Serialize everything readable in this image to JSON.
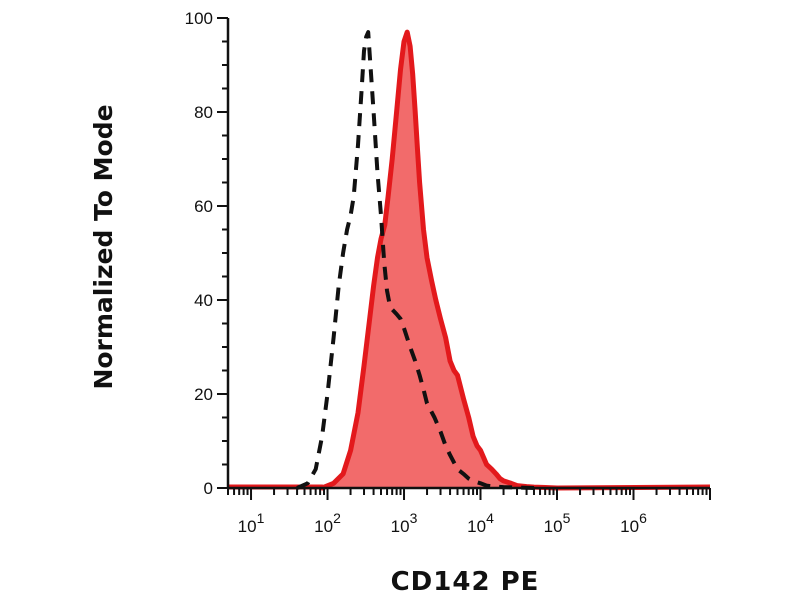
{
  "chart_data": {
    "type": "area",
    "xlabel": "CD142 PE",
    "ylabel": "Normalized To Mode",
    "x_scale": "log",
    "xlim": [
      5,
      10000000
    ],
    "ylim": [
      0,
      100
    ],
    "x_ticks": [
      {
        "base": "10",
        "exp": "1",
        "value": 10
      },
      {
        "base": "10",
        "exp": "2",
        "value": 100
      },
      {
        "base": "10",
        "exp": "3",
        "value": 1000
      },
      {
        "base": "10",
        "exp": "4",
        "value": 10000
      },
      {
        "base": "10",
        "exp": "5",
        "value": 100000
      },
      {
        "base": "10",
        "exp": "6",
        "value": 1000000
      }
    ],
    "y_ticks": [
      "0",
      "20",
      "40",
      "60",
      "80",
      "100"
    ],
    "grid": false,
    "legend": "none",
    "colors": {
      "stained_line": "#e3191c",
      "stained_fill": "#f26b6b",
      "control_line": "#111111",
      "axis": "#111111"
    },
    "series": [
      {
        "style": "filled-solid",
        "x": [
          85,
          120,
          160,
          200,
          250,
          300,
          350,
          400,
          450,
          500,
          560,
          620,
          700,
          800,
          900,
          1000,
          1100,
          1200,
          1300,
          1400,
          1500,
          1600,
          1800,
          2000,
          2300,
          2600,
          3000,
          3500,
          4000,
          4500,
          5000,
          6000,
          7000,
          8000,
          9000,
          10000,
          12000,
          14000,
          16000,
          18000,
          20000,
          25000,
          30000,
          40000,
          50000,
          70000,
          100000
        ],
        "y": [
          0,
          1,
          3,
          8,
          16,
          26,
          35,
          43,
          49,
          53,
          56,
          62,
          70,
          80,
          89,
          95,
          97,
          94,
          88,
          80,
          72,
          65,
          55,
          49,
          44,
          40,
          36,
          32,
          27,
          25,
          24,
          19,
          15,
          11,
          9,
          8,
          5,
          4,
          3,
          2,
          1.5,
          1,
          0.5,
          0.3,
          0.2,
          0.1,
          0
        ]
      },
      {
        "style": "dashed",
        "x": [
          40,
          55,
          70,
          85,
          100,
          120,
          140,
          160,
          180,
          200,
          220,
          250,
          280,
          300,
          320,
          340,
          360,
          400,
          450,
          500,
          550,
          600,
          650,
          700,
          800,
          900,
          1000,
          1200,
          1400,
          1600,
          1800,
          2000,
          2500,
          3000,
          3500,
          4000,
          5000,
          6000,
          7000,
          8000,
          10000,
          12000,
          15000,
          20000,
          30000,
          50000
        ],
        "y": [
          0,
          1,
          4,
          11,
          20,
          32,
          43,
          50,
          55,
          58,
          62,
          73,
          85,
          93,
          96,
          97,
          91,
          80,
          67,
          58,
          48,
          42,
          39,
          38,
          37,
          36,
          34,
          30,
          27,
          24,
          21,
          18,
          15,
          12,
          9,
          7,
          4,
          3,
          2,
          1.5,
          1,
          0.5,
          0.3,
          0.2,
          0.1,
          0
        ]
      }
    ]
  }
}
